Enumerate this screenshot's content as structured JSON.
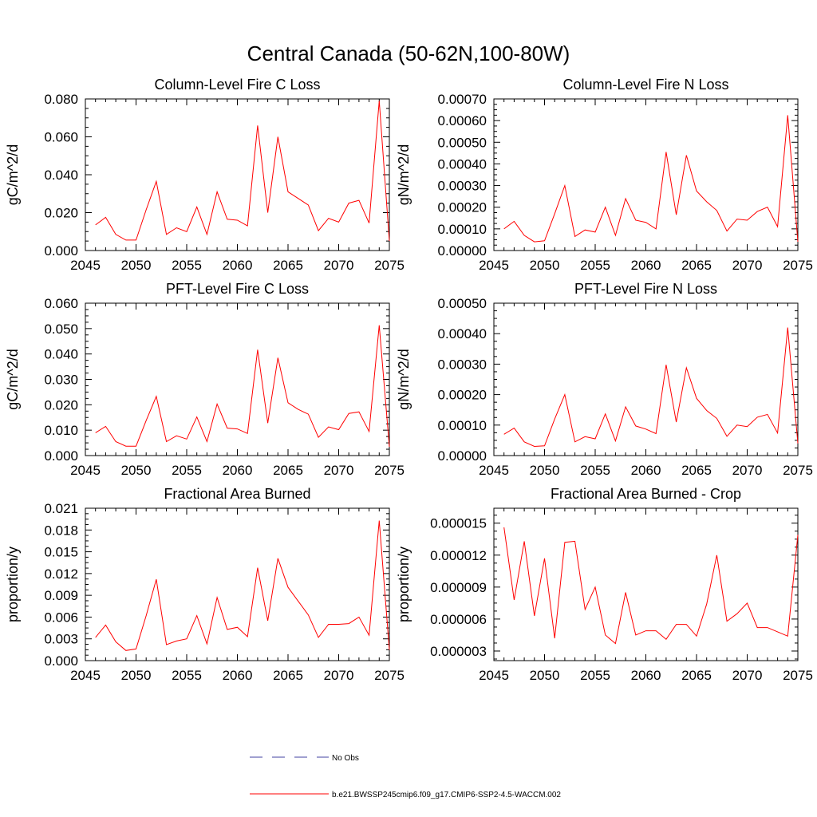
{
  "figure_title": "Central Canada (50-62N,100-80W)",
  "legend": {
    "entries": [
      {
        "label": "No Obs",
        "color": "#4040a0",
        "dash": true
      },
      {
        "label": "b.e21.BWSSP245cmip6.f09_g17.CMIP6-SSP2-4.5-WACCM.002",
        "color": "#ff0000",
        "dash": false
      }
    ]
  },
  "chart_data": [
    {
      "type": "line",
      "title": "Column-Level Fire C Loss",
      "ylabel": "gC/m^2/d",
      "xlim": [
        2045,
        2075
      ],
      "ylim": [
        0,
        0.08
      ],
      "xticks": [
        2045,
        2050,
        2055,
        2060,
        2065,
        2070,
        2075
      ],
      "xtick_labels": [
        "2045",
        "2050",
        "2055",
        "2060",
        "2065",
        "2070",
        "2075"
      ],
      "yticks": [
        0,
        0.02,
        0.04,
        0.06,
        0.08
      ],
      "ytick_labels": [
        "0.000",
        "0.020",
        "0.040",
        "0.060",
        "0.080"
      ],
      "color": "#ff0000",
      "x": [
        2046,
        2047,
        2048,
        2049,
        2050,
        2051,
        2052,
        2053,
        2054,
        2055,
        2056,
        2057,
        2058,
        2059,
        2060,
        2061,
        2062,
        2063,
        2064,
        2065,
        2066,
        2067,
        2068,
        2069,
        2070,
        2071,
        2072,
        2073,
        2074,
        2075
      ],
      "values": [
        0.0135,
        0.0175,
        0.0085,
        0.0055,
        0.0055,
        0.0215,
        0.0365,
        0.0085,
        0.012,
        0.01,
        0.023,
        0.0085,
        0.031,
        0.0165,
        0.016,
        0.013,
        0.066,
        0.02,
        0.06,
        0.031,
        0.0275,
        0.024,
        0.0105,
        0.017,
        0.015,
        0.025,
        0.0265,
        0.0145,
        0.079,
        0.005
      ]
    },
    {
      "type": "line",
      "title": "Column-Level Fire N Loss",
      "ylabel": "gN/m^2/d",
      "xlim": [
        2045,
        2075
      ],
      "ylim": [
        0,
        0.0007
      ],
      "xticks": [
        2045,
        2050,
        2055,
        2060,
        2065,
        2070,
        2075
      ],
      "xtick_labels": [
        "2045",
        "2050",
        "2055",
        "2060",
        "2065",
        "2070",
        "2075"
      ],
      "yticks": [
        0,
        0.0001,
        0.0002,
        0.0003,
        0.0004,
        0.0005,
        0.0006,
        0.0007
      ],
      "ytick_labels": [
        "0.00000",
        "0.00010",
        "0.00020",
        "0.00030",
        "0.00040",
        "0.00050",
        "0.00060",
        "0.00070"
      ],
      "color": "#ff0000",
      "x": [
        2046,
        2047,
        2048,
        2049,
        2050,
        2051,
        2052,
        2053,
        2054,
        2055,
        2056,
        2057,
        2058,
        2059,
        2060,
        2061,
        2062,
        2063,
        2064,
        2065,
        2066,
        2067,
        2068,
        2069,
        2070,
        2071,
        2072,
        2073,
        2074,
        2075
      ],
      "values": [
        0.0001,
        0.000135,
        7e-05,
        4e-05,
        4.5e-05,
        0.00017,
        0.0003,
        6.5e-05,
        9.5e-05,
        8.5e-05,
        0.0002,
        7e-05,
        0.00024,
        0.00014,
        0.00013,
        0.0001,
        0.000455,
        0.000165,
        0.00044,
        0.000275,
        0.000225,
        0.000185,
        9e-05,
        0.000145,
        0.00014,
        0.00018,
        0.0002,
        0.00011,
        0.000625,
        4e-05
      ]
    },
    {
      "type": "line",
      "title": "PFT-Level Fire C Loss",
      "ylabel": "gC/m^2/d",
      "xlim": [
        2045,
        2075
      ],
      "ylim": [
        0,
        0.06
      ],
      "xticks": [
        2045,
        2050,
        2055,
        2060,
        2065,
        2070,
        2075
      ],
      "xtick_labels": [
        "2045",
        "2050",
        "2055",
        "2060",
        "2065",
        "2070",
        "2075"
      ],
      "yticks": [
        0,
        0.01,
        0.02,
        0.03,
        0.04,
        0.05,
        0.06
      ],
      "ytick_labels": [
        "0.000",
        "0.010",
        "0.020",
        "0.030",
        "0.040",
        "0.050",
        "0.060"
      ],
      "color": "#ff0000",
      "x": [
        2046,
        2047,
        2048,
        2049,
        2050,
        2051,
        2052,
        2053,
        2054,
        2055,
        2056,
        2057,
        2058,
        2059,
        2060,
        2061,
        2062,
        2063,
        2064,
        2065,
        2066,
        2067,
        2068,
        2069,
        2070,
        2071,
        2072,
        2073,
        2074,
        2075
      ],
      "values": [
        0.009,
        0.0115,
        0.0055,
        0.0037,
        0.0037,
        0.0138,
        0.0233,
        0.0055,
        0.0078,
        0.0065,
        0.0152,
        0.0055,
        0.0203,
        0.0108,
        0.0105,
        0.0087,
        0.0417,
        0.0128,
        0.0385,
        0.0208,
        0.0182,
        0.0163,
        0.0072,
        0.0113,
        0.0102,
        0.0166,
        0.0172,
        0.0095,
        0.0513,
        0.0035
      ]
    },
    {
      "type": "line",
      "title": "PFT-Level Fire N Loss",
      "ylabel": "gN/m^2/d",
      "xlim": [
        2045,
        2075
      ],
      "ylim": [
        0,
        0.0005
      ],
      "xticks": [
        2045,
        2050,
        2055,
        2060,
        2065,
        2070,
        2075
      ],
      "xtick_labels": [
        "2045",
        "2050",
        "2055",
        "2060",
        "2065",
        "2070",
        "2075"
      ],
      "yticks": [
        0,
        0.0001,
        0.0002,
        0.0003,
        0.0004,
        0.0005
      ],
      "ytick_labels": [
        "0.00000",
        "0.00010",
        "0.00020",
        "0.00030",
        "0.00040",
        "0.00050"
      ],
      "color": "#ff0000",
      "x": [
        2046,
        2047,
        2048,
        2049,
        2050,
        2051,
        2052,
        2053,
        2054,
        2055,
        2056,
        2057,
        2058,
        2059,
        2060,
        2061,
        2062,
        2063,
        2064,
        2065,
        2066,
        2067,
        2068,
        2069,
        2070,
        2071,
        2072,
        2073,
        2074,
        2075
      ],
      "values": [
        7e-05,
        9e-05,
        4.5e-05,
        3e-05,
        3.2e-05,
        0.00012,
        0.0002,
        4.5e-05,
        6.2e-05,
        5.5e-05,
        0.000137,
        4.8e-05,
        0.00016,
        9.7e-05,
        8.7e-05,
        7.2e-05,
        0.000298,
        0.00011,
        0.000288,
        0.000188,
        0.000148,
        0.000122,
        6.3e-05,
        0.0001,
        9.5e-05,
        0.000126,
        0.000135,
        7.4e-05,
        0.00042,
        4e-05
      ]
    },
    {
      "type": "line",
      "title": "Fractional Area Burned",
      "ylabel": "proportion/y",
      "xlim": [
        2045,
        2075
      ],
      "ylim": [
        0,
        0.021
      ],
      "xticks": [
        2045,
        2050,
        2055,
        2060,
        2065,
        2070,
        2075
      ],
      "xtick_labels": [
        "2045",
        "2050",
        "2055",
        "2060",
        "2065",
        "2070",
        "2075"
      ],
      "yticks": [
        0,
        0.003,
        0.006,
        0.009,
        0.012,
        0.015,
        0.018,
        0.021
      ],
      "ytick_labels": [
        "0.000",
        "0.003",
        "0.006",
        "0.009",
        "0.012",
        "0.015",
        "0.018",
        "0.021"
      ],
      "color": "#ff0000",
      "x": [
        2046,
        2047,
        2048,
        2049,
        2050,
        2051,
        2052,
        2053,
        2054,
        2055,
        2056,
        2057,
        2058,
        2059,
        2060,
        2061,
        2062,
        2063,
        2064,
        2065,
        2066,
        2067,
        2068,
        2069,
        2070,
        2071,
        2072,
        2073,
        2074,
        2075
      ],
      "values": [
        0.0032,
        0.0049,
        0.0026,
        0.0014,
        0.0016,
        0.0062,
        0.0112,
        0.0022,
        0.0027,
        0.003,
        0.0062,
        0.0023,
        0.0087,
        0.0043,
        0.0046,
        0.0033,
        0.0128,
        0.0055,
        0.0141,
        0.0101,
        0.0082,
        0.0063,
        0.0032,
        0.005,
        0.005,
        0.0051,
        0.006,
        0.0035,
        0.0193,
        0.0015
      ]
    },
    {
      "type": "line",
      "title": "Fractional Area Burned - Crop",
      "ylabel": "proportion/y",
      "xlim": [
        2045,
        2075
      ],
      "ylim": [
        2.1e-06,
        1.64e-05
      ],
      "xticks": [
        2045,
        2050,
        2055,
        2060,
        2065,
        2070,
        2075
      ],
      "xtick_labels": [
        "2045",
        "2050",
        "2055",
        "2060",
        "2065",
        "2070",
        "2075"
      ],
      "yticks": [
        3e-06,
        6e-06,
        9e-06,
        1.2e-05,
        1.5e-05
      ],
      "ytick_labels": [
        "0.000003",
        "0.000006",
        "0.000009",
        "0.000012",
        "0.000015"
      ],
      "color": "#ff0000",
      "x": [
        2046,
        2047,
        2048,
        2049,
        2050,
        2051,
        2052,
        2053,
        2054,
        2055,
        2056,
        2057,
        2058,
        2059,
        2060,
        2061,
        2062,
        2063,
        2064,
        2065,
        2066,
        2067,
        2068,
        2069,
        2070,
        2071,
        2072,
        2073,
        2074,
        2075
      ],
      "values": [
        1.46e-05,
        7.8e-06,
        1.33e-05,
        6.3e-06,
        1.17e-05,
        4.2e-06,
        1.32e-05,
        1.33e-05,
        6.9e-06,
        9e-06,
        4.5e-06,
        3.7e-06,
        8.5e-06,
        4.5e-06,
        4.9e-06,
        4.9e-06,
        4.1e-06,
        5.5e-06,
        5.5e-06,
        4.4e-06,
        7.4e-06,
        1.2e-05,
        5.8e-06,
        6.5e-06,
        7.5e-06,
        5.2e-06,
        5.2e-06,
        4.8e-06,
        4.4e-06,
        1.39e-05
      ]
    }
  ]
}
